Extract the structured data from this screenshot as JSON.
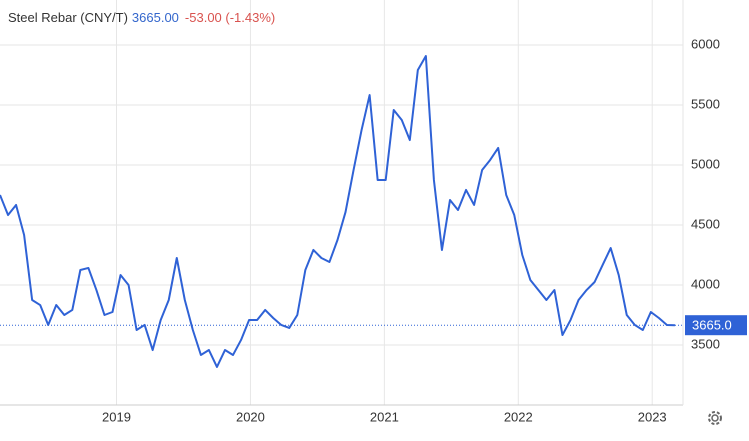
{
  "chart_data": {
    "type": "line",
    "title": "Steel Rebar (CNY/T)",
    "price": "3665.00",
    "change": "-53.00 (-1.43%)",
    "x": [
      2018.13,
      2018.19,
      2018.25,
      2018.31,
      2018.37,
      2018.43,
      2018.49,
      2018.55,
      2018.61,
      2018.67,
      2018.73,
      2018.79,
      2018.85,
      2018.91,
      2018.97,
      2019.03,
      2019.09,
      2019.15,
      2019.21,
      2019.27,
      2019.33,
      2019.39,
      2019.45,
      2019.51,
      2019.57,
      2019.63,
      2019.69,
      2019.75,
      2019.81,
      2019.87,
      2019.93,
      2019.99,
      2020.05,
      2020.11,
      2020.17,
      2020.23,
      2020.29,
      2020.35,
      2020.41,
      2020.47,
      2020.53,
      2020.59,
      2020.65,
      2020.71,
      2020.77,
      2020.83,
      2020.89,
      2020.95,
      2021.01,
      2021.07,
      2021.13,
      2021.19,
      2021.25,
      2021.31,
      2021.37,
      2021.43,
      2021.49,
      2021.55,
      2021.61,
      2021.67,
      2021.73,
      2021.79,
      2021.85,
      2021.91,
      2021.97,
      2022.03,
      2022.09,
      2022.15,
      2022.21,
      2022.27,
      2022.33,
      2022.39,
      2022.45,
      2022.51,
      2022.57,
      2022.63,
      2022.69,
      2022.75,
      2022.81,
      2022.87,
      2022.93,
      2022.99,
      2023.05,
      2023.11,
      2023.17
    ],
    "series": [
      {
        "name": "Steel Rebar",
        "color": "#2f62d6",
        "values": [
          4750,
          4583,
          4667,
          4417,
          3875,
          3833,
          3667,
          3833,
          3750,
          3792,
          4125,
          4142,
          3958,
          3750,
          3775,
          4083,
          4000,
          3625,
          3667,
          3458,
          3708,
          3875,
          4225,
          3875,
          3625,
          3417,
          3458,
          3317,
          3458,
          3417,
          3542,
          3708,
          3708,
          3792,
          3725,
          3667,
          3642,
          3750,
          4125,
          4292,
          4225,
          4192,
          4375,
          4608,
          4958,
          5292,
          5583,
          4875,
          4875,
          5458,
          5375,
          5208,
          5792,
          5908,
          4875,
          4292,
          4708,
          4625,
          4792,
          4667,
          4958,
          5042,
          5142,
          4750,
          4583,
          4250,
          4042,
          3958,
          3875,
          3958,
          3583,
          3708,
          3875,
          3958,
          4025,
          4167,
          4308,
          4083,
          3750,
          3667,
          3625,
          3775,
          3725,
          3667,
          3665
        ]
      }
    ],
    "last_value": {
      "value": 3665,
      "label": "3665.0"
    },
    "xlim": [
      2018.13,
      2023.23
    ],
    "xticks": [
      2019,
      2020,
      2021,
      2022,
      2023
    ],
    "ylim": [
      3000,
      6375
    ],
    "yticks": [
      3500,
      4000,
      4500,
      5000,
      5500,
      6000
    ],
    "grid": true
  }
}
